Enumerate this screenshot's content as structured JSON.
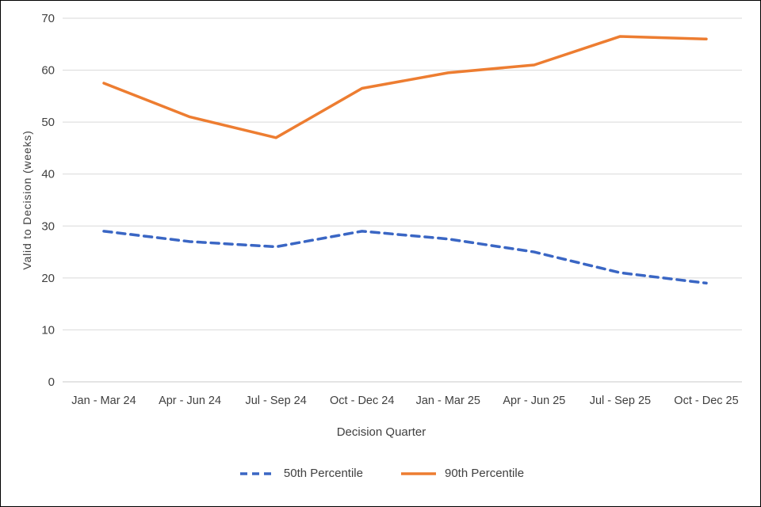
{
  "chart_data": {
    "type": "line",
    "title": "",
    "xlabel": "Decision Quarter",
    "ylabel": "Valid to Decision (weeks)",
    "ylim": [
      0,
      70
    ],
    "ytick_step": 10,
    "yticks": [
      0,
      10,
      20,
      30,
      40,
      50,
      60,
      70
    ],
    "grid": "horizontal",
    "legend_position": "bottom",
    "categories": [
      "Jan - Mar 24",
      "Apr - Jun 24",
      "Jul - Sep 24",
      "Oct - Dec 24",
      "Jan - Mar 25",
      "Apr - Jun 25",
      "Jul - Sep 25",
      "Oct - Dec 25"
    ],
    "series": [
      {
        "name": "50th Percentile",
        "color": "#3A66C4",
        "style": "dashed",
        "values": [
          29,
          27,
          26,
          29,
          27.5,
          25,
          21,
          19
        ]
      },
      {
        "name": "90th Percentile",
        "color": "#ED7D31",
        "style": "solid",
        "values": [
          57.5,
          51,
          47,
          56.5,
          59.5,
          61,
          66.5,
          66
        ]
      }
    ]
  }
}
